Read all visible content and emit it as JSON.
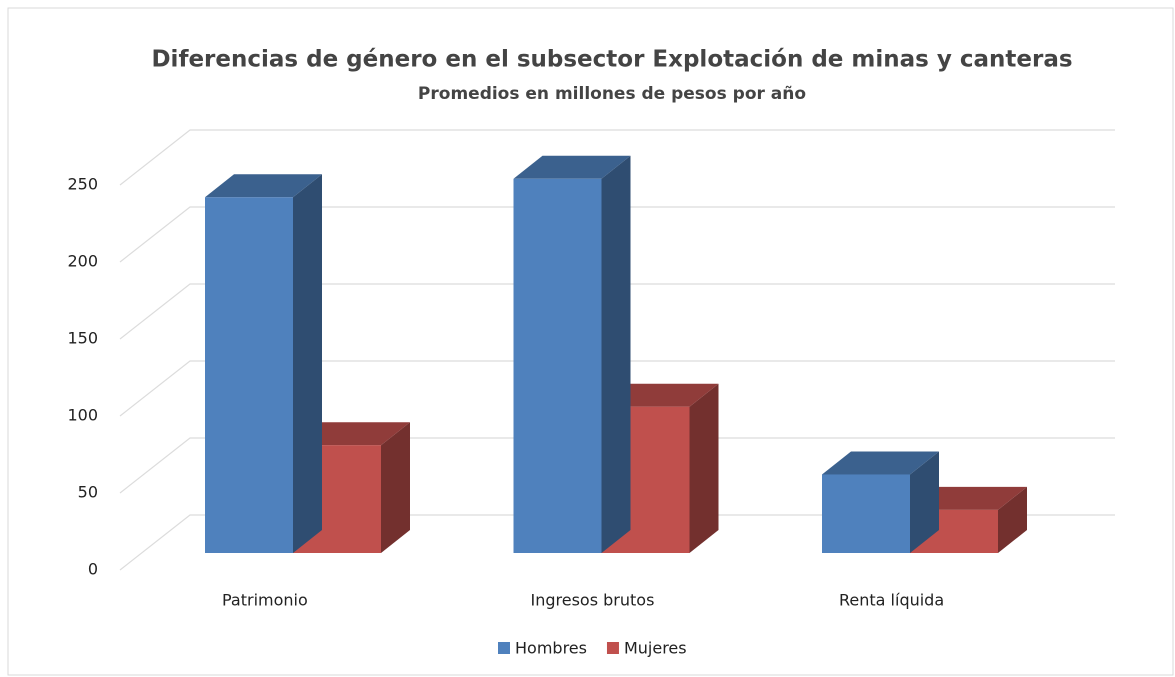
{
  "chart_data": {
    "type": "bar3d",
    "title": "Diferencias de género en el subsector Explotación de minas y canteras",
    "subtitle": "Promedios en millones de pesos por año",
    "categories": [
      "Patrimonio",
      "Ingresos brutos",
      "Renta líquida"
    ],
    "series": [
      {
        "name": "Hombres",
        "color": "#4f81bd",
        "values": [
          231,
          243,
          51
        ]
      },
      {
        "name": "Mujeres",
        "color": "#c0504d",
        "values": [
          70,
          95,
          28
        ]
      }
    ],
    "ylim": [
      0,
      250
    ],
    "yticks": [
      0,
      50,
      100,
      150,
      200,
      250
    ],
    "grid": true,
    "legend": "bottom"
  }
}
